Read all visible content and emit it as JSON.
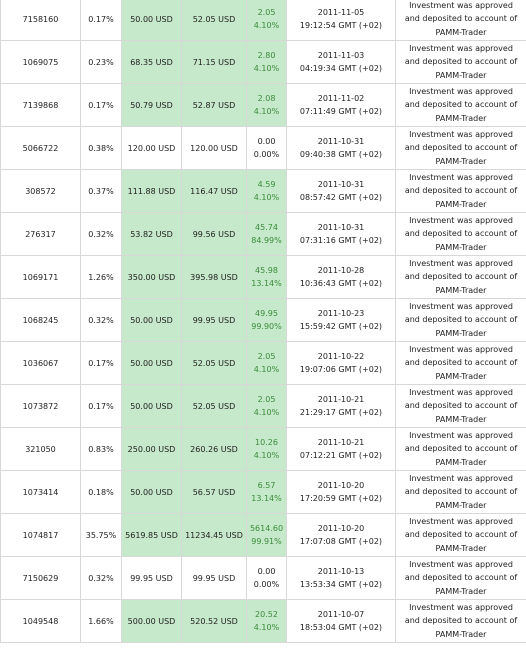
{
  "table": {
    "profit_color": "#3c8c3c",
    "rows": [
      {
        "id": "7158160",
        "share": "0.17%",
        "invested": "50.00 USD",
        "current": "52.05 USD",
        "profit": "2.05",
        "profit_pct": "4.10%",
        "date": "2011-11-05",
        "time": "19:12:54 GMT (+02)",
        "status": "Investment was approved and deposited to account of PAMM-Trader",
        "color": "#c6e8cb"
      },
      {
        "id": "1069075",
        "share": "0.23%",
        "invested": "68.35 USD",
        "current": "71.15 USD",
        "profit": "2.80",
        "profit_pct": "4.10%",
        "date": "2011-11-03",
        "time": "04:19:34 GMT (+02)",
        "status": "Investment was approved and deposited to account of PAMM-Trader",
        "color": "#c6e8cb"
      },
      {
        "id": "7139868",
        "share": "0.17%",
        "invested": "50.79 USD",
        "current": "52.87 USD",
        "profit": "2.08",
        "profit_pct": "4.10%",
        "date": "2011-11-02",
        "time": "07:11:49 GMT (+02)",
        "status": "Investment was approved and deposited to account of PAMM-Trader",
        "color": "#c6e8cb"
      },
      {
        "id": "5066722",
        "share": "0.38%",
        "invested": "120.00 USD",
        "current": "120.00 USD",
        "profit": "0.00",
        "profit_pct": "0.00%",
        "date": "2011-10-31",
        "time": "09:40:38 GMT (+02)",
        "status": "Investment was approved and deposited to account of PAMM-Trader",
        "color": "#ffffff"
      },
      {
        "id": "308572",
        "share": "0.37%",
        "invested": "111.88 USD",
        "current": "116.47 USD",
        "profit": "4.59",
        "profit_pct": "4.10%",
        "date": "2011-10-31",
        "time": "08:57:42 GMT (+02)",
        "status": "Investment was approved and deposited to account of PAMM-Trader",
        "color": "#c6e8cb"
      },
      {
        "id": "276317",
        "share": "0.32%",
        "invested": "53.82 USD",
        "current": "99.56 USD",
        "profit": "45.74",
        "profit_pct": "84.99%",
        "date": "2011-10-31",
        "time": "07:31:16 GMT (+02)",
        "status": "Investment was approved and deposited to account of PAMM-Trader",
        "color": "#c6e8cb"
      },
      {
        "id": "1069171",
        "share": "1.26%",
        "invested": "350.00 USD",
        "current": "395.98 USD",
        "profit": "45.98",
        "profit_pct": "13.14%",
        "date": "2011-10-28",
        "time": "10:36:43 GMT (+02)",
        "status": "Investment was approved and deposited to account of PAMM-Trader",
        "color": "#c6e8cb"
      },
      {
        "id": "1068245",
        "share": "0.32%",
        "invested": "50.00 USD",
        "current": "99.95 USD",
        "profit": "49.95",
        "profit_pct": "99.90%",
        "date": "2011-10-23",
        "time": "15:59:42 GMT (+02)",
        "status": "Investment was approved and deposited to account of PAMM-Trader",
        "color": "#c6e8cb"
      },
      {
        "id": "1036067",
        "share": "0.17%",
        "invested": "50.00 USD",
        "current": "52.05 USD",
        "profit": "2.05",
        "profit_pct": "4.10%",
        "date": "2011-10-22",
        "time": "19:07:06 GMT (+02)",
        "status": "Investment was approved and deposited to account of PAMM-Trader",
        "color": "#c6e8cb"
      },
      {
        "id": "1073872",
        "share": "0.17%",
        "invested": "50.00 USD",
        "current": "52.05 USD",
        "profit": "2.05",
        "profit_pct": "4.10%",
        "date": "2011-10-21",
        "time": "21:29:17 GMT (+02)",
        "status": "Investment was approved and deposited to account of PAMM-Trader",
        "color": "#c6e8cb"
      },
      {
        "id": "321050",
        "share": "0.83%",
        "invested": "250.00 USD",
        "current": "260.26 USD",
        "profit": "10.26",
        "profit_pct": "4.10%",
        "date": "2011-10-21",
        "time": "07:12:21 GMT (+02)",
        "status": "Investment was approved and deposited to account of PAMM-Trader",
        "color": "#c6e8cb"
      },
      {
        "id": "1073414",
        "share": "0.18%",
        "invested": "50.00 USD",
        "current": "56.57 USD",
        "profit": "6.57",
        "profit_pct": "13.14%",
        "date": "2011-10-20",
        "time": "17:20:59 GMT (+02)",
        "status": "Investment was approved and deposited to account of PAMM-Trader",
        "color": "#c6e8cb"
      },
      {
        "id": "1074817",
        "share": "35.75%",
        "invested": "5619.85 USD",
        "current": "11234.45 USD",
        "profit": "5614.60",
        "profit_pct": "99.91%",
        "date": "2011-10-20",
        "time": "17:07:08 GMT (+02)",
        "status": "Investment was approved and deposited to account of PAMM-Trader",
        "color": "#c6e8cb"
      },
      {
        "id": "7150629",
        "share": "0.32%",
        "invested": "99.95 USD",
        "current": "99.95 USD",
        "profit": "0.00",
        "profit_pct": "0.00%",
        "date": "2011-10-13",
        "time": "13:53:34 GMT (+02)",
        "status": "Investment was approved and deposited to account of PAMM-Trader",
        "color": "#ffffff"
      },
      {
        "id": "1049548",
        "share": "1.66%",
        "invested": "500.00 USD",
        "current": "520.52 USD",
        "profit": "20.52",
        "profit_pct": "4.10%",
        "date": "2011-10-07",
        "time": "18:53:04 GMT (+02)",
        "status": "Investment was approved and deposited to account of PAMM-Trader",
        "color": "#c6e8cb"
      }
    ]
  }
}
